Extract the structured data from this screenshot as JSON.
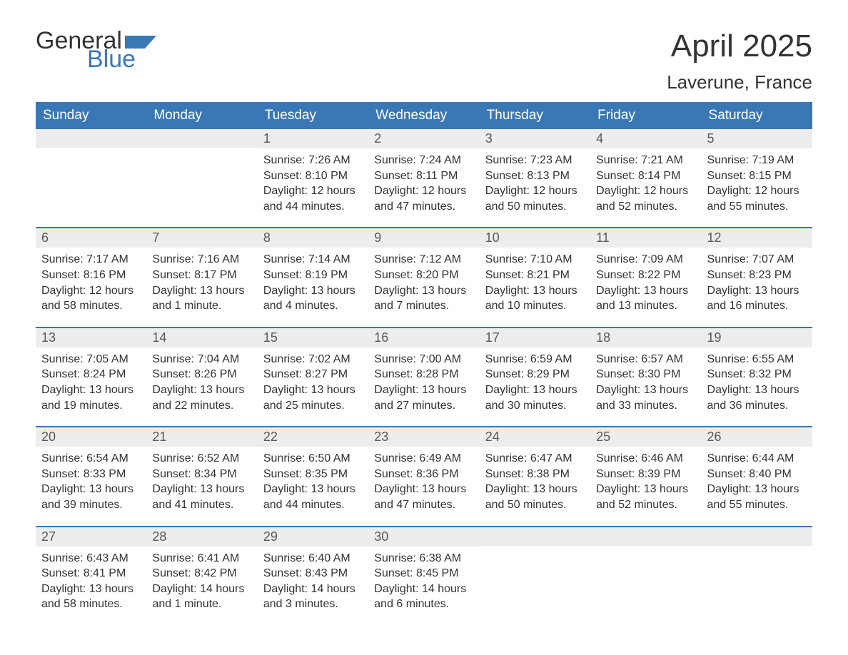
{
  "brand": {
    "text_general": "General",
    "text_blue": "Blue",
    "flag_color": "#3a78b5",
    "text_dark": "#333333"
  },
  "header": {
    "month_title": "April 2025",
    "location": "Laverune, France"
  },
  "colors": {
    "header_bg": "#3a78b5",
    "header_text": "#ffffff",
    "daynum_bg": "#ededed",
    "daynum_text": "#595959",
    "body_text": "#333333",
    "week_border": "#3a78b5",
    "page_bg": "#ffffff"
  },
  "typography": {
    "month_title_fontsize": 44,
    "location_fontsize": 26,
    "day_header_fontsize": 19,
    "daynum_fontsize": 18,
    "content_fontsize": 16
  },
  "day_labels": [
    "Sunday",
    "Monday",
    "Tuesday",
    "Wednesday",
    "Thursday",
    "Friday",
    "Saturday"
  ],
  "weeks": [
    [
      {
        "num": "",
        "sunrise": "",
        "sunset": "",
        "daylight": ""
      },
      {
        "num": "",
        "sunrise": "",
        "sunset": "",
        "daylight": ""
      },
      {
        "num": "1",
        "sunrise": "Sunrise: 7:26 AM",
        "sunset": "Sunset: 8:10 PM",
        "daylight": "Daylight: 12 hours and 44 minutes."
      },
      {
        "num": "2",
        "sunrise": "Sunrise: 7:24 AM",
        "sunset": "Sunset: 8:11 PM",
        "daylight": "Daylight: 12 hours and 47 minutes."
      },
      {
        "num": "3",
        "sunrise": "Sunrise: 7:23 AM",
        "sunset": "Sunset: 8:13 PM",
        "daylight": "Daylight: 12 hours and 50 minutes."
      },
      {
        "num": "4",
        "sunrise": "Sunrise: 7:21 AM",
        "sunset": "Sunset: 8:14 PM",
        "daylight": "Daylight: 12 hours and 52 minutes."
      },
      {
        "num": "5",
        "sunrise": "Sunrise: 7:19 AM",
        "sunset": "Sunset: 8:15 PM",
        "daylight": "Daylight: 12 hours and 55 minutes."
      }
    ],
    [
      {
        "num": "6",
        "sunrise": "Sunrise: 7:17 AM",
        "sunset": "Sunset: 8:16 PM",
        "daylight": "Daylight: 12 hours and 58 minutes."
      },
      {
        "num": "7",
        "sunrise": "Sunrise: 7:16 AM",
        "sunset": "Sunset: 8:17 PM",
        "daylight": "Daylight: 13 hours and 1 minute."
      },
      {
        "num": "8",
        "sunrise": "Sunrise: 7:14 AM",
        "sunset": "Sunset: 8:19 PM",
        "daylight": "Daylight: 13 hours and 4 minutes."
      },
      {
        "num": "9",
        "sunrise": "Sunrise: 7:12 AM",
        "sunset": "Sunset: 8:20 PM",
        "daylight": "Daylight: 13 hours and 7 minutes."
      },
      {
        "num": "10",
        "sunrise": "Sunrise: 7:10 AM",
        "sunset": "Sunset: 8:21 PM",
        "daylight": "Daylight: 13 hours and 10 minutes."
      },
      {
        "num": "11",
        "sunrise": "Sunrise: 7:09 AM",
        "sunset": "Sunset: 8:22 PM",
        "daylight": "Daylight: 13 hours and 13 minutes."
      },
      {
        "num": "12",
        "sunrise": "Sunrise: 7:07 AM",
        "sunset": "Sunset: 8:23 PM",
        "daylight": "Daylight: 13 hours and 16 minutes."
      }
    ],
    [
      {
        "num": "13",
        "sunrise": "Sunrise: 7:05 AM",
        "sunset": "Sunset: 8:24 PM",
        "daylight": "Daylight: 13 hours and 19 minutes."
      },
      {
        "num": "14",
        "sunrise": "Sunrise: 7:04 AM",
        "sunset": "Sunset: 8:26 PM",
        "daylight": "Daylight: 13 hours and 22 minutes."
      },
      {
        "num": "15",
        "sunrise": "Sunrise: 7:02 AM",
        "sunset": "Sunset: 8:27 PM",
        "daylight": "Daylight: 13 hours and 25 minutes."
      },
      {
        "num": "16",
        "sunrise": "Sunrise: 7:00 AM",
        "sunset": "Sunset: 8:28 PM",
        "daylight": "Daylight: 13 hours and 27 minutes."
      },
      {
        "num": "17",
        "sunrise": "Sunrise: 6:59 AM",
        "sunset": "Sunset: 8:29 PM",
        "daylight": "Daylight: 13 hours and 30 minutes."
      },
      {
        "num": "18",
        "sunrise": "Sunrise: 6:57 AM",
        "sunset": "Sunset: 8:30 PM",
        "daylight": "Daylight: 13 hours and 33 minutes."
      },
      {
        "num": "19",
        "sunrise": "Sunrise: 6:55 AM",
        "sunset": "Sunset: 8:32 PM",
        "daylight": "Daylight: 13 hours and 36 minutes."
      }
    ],
    [
      {
        "num": "20",
        "sunrise": "Sunrise: 6:54 AM",
        "sunset": "Sunset: 8:33 PM",
        "daylight": "Daylight: 13 hours and 39 minutes."
      },
      {
        "num": "21",
        "sunrise": "Sunrise: 6:52 AM",
        "sunset": "Sunset: 8:34 PM",
        "daylight": "Daylight: 13 hours and 41 minutes."
      },
      {
        "num": "22",
        "sunrise": "Sunrise: 6:50 AM",
        "sunset": "Sunset: 8:35 PM",
        "daylight": "Daylight: 13 hours and 44 minutes."
      },
      {
        "num": "23",
        "sunrise": "Sunrise: 6:49 AM",
        "sunset": "Sunset: 8:36 PM",
        "daylight": "Daylight: 13 hours and 47 minutes."
      },
      {
        "num": "24",
        "sunrise": "Sunrise: 6:47 AM",
        "sunset": "Sunset: 8:38 PM",
        "daylight": "Daylight: 13 hours and 50 minutes."
      },
      {
        "num": "25",
        "sunrise": "Sunrise: 6:46 AM",
        "sunset": "Sunset: 8:39 PM",
        "daylight": "Daylight: 13 hours and 52 minutes."
      },
      {
        "num": "26",
        "sunrise": "Sunrise: 6:44 AM",
        "sunset": "Sunset: 8:40 PM",
        "daylight": "Daylight: 13 hours and 55 minutes."
      }
    ],
    [
      {
        "num": "27",
        "sunrise": "Sunrise: 6:43 AM",
        "sunset": "Sunset: 8:41 PM",
        "daylight": "Daylight: 13 hours and 58 minutes."
      },
      {
        "num": "28",
        "sunrise": "Sunrise: 6:41 AM",
        "sunset": "Sunset: 8:42 PM",
        "daylight": "Daylight: 14 hours and 1 minute."
      },
      {
        "num": "29",
        "sunrise": "Sunrise: 6:40 AM",
        "sunset": "Sunset: 8:43 PM",
        "daylight": "Daylight: 14 hours and 3 minutes."
      },
      {
        "num": "30",
        "sunrise": "Sunrise: 6:38 AM",
        "sunset": "Sunset: 8:45 PM",
        "daylight": "Daylight: 14 hours and 6 minutes."
      },
      {
        "num": "",
        "sunrise": "",
        "sunset": "",
        "daylight": ""
      },
      {
        "num": "",
        "sunrise": "",
        "sunset": "",
        "daylight": ""
      },
      {
        "num": "",
        "sunrise": "",
        "sunset": "",
        "daylight": ""
      }
    ]
  ]
}
